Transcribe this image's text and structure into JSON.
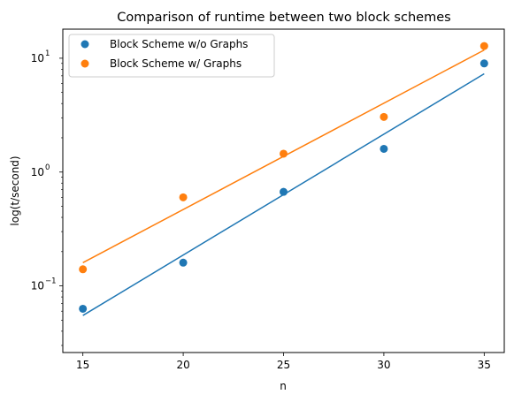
{
  "chart_data": {
    "type": "scatter",
    "title": "Comparison of runtime between two block schemes",
    "xlabel": "n",
    "ylabel": "log(t/second)",
    "xlim": [
      14,
      36
    ],
    "ylim": [
      0.026,
      18
    ],
    "yscale": "log",
    "grid": false,
    "legend_position": "top-left",
    "x_ticks": [
      15,
      20,
      25,
      30,
      35
    ],
    "x_tick_labels": [
      "15",
      "20",
      "25",
      "30",
      "35"
    ],
    "y_ticks": [
      0.1,
      1,
      10
    ],
    "y_tick_labels": [
      "10",
      "10",
      "10"
    ],
    "y_tick_exponents": [
      "−1",
      "0",
      "1"
    ],
    "series": [
      {
        "name": "Block Scheme w/o Graphs",
        "color": "#1f77b4",
        "x": [
          15,
          20,
          25,
          30,
          35
        ],
        "y": [
          0.063,
          0.16,
          0.67,
          1.6,
          9.0
        ],
        "fit_line": [
          [
            15,
            0.055
          ],
          [
            35,
            7.3
          ]
        ]
      },
      {
        "name": "Block Scheme w/ Graphs",
        "color": "#ff7f0e",
        "x": [
          15,
          20,
          25,
          30,
          35
        ],
        "y": [
          0.14,
          0.6,
          1.45,
          3.05,
          12.8
        ],
        "fit_line": [
          [
            15,
            0.16
          ],
          [
            35,
            11.8
          ]
        ]
      }
    ]
  }
}
